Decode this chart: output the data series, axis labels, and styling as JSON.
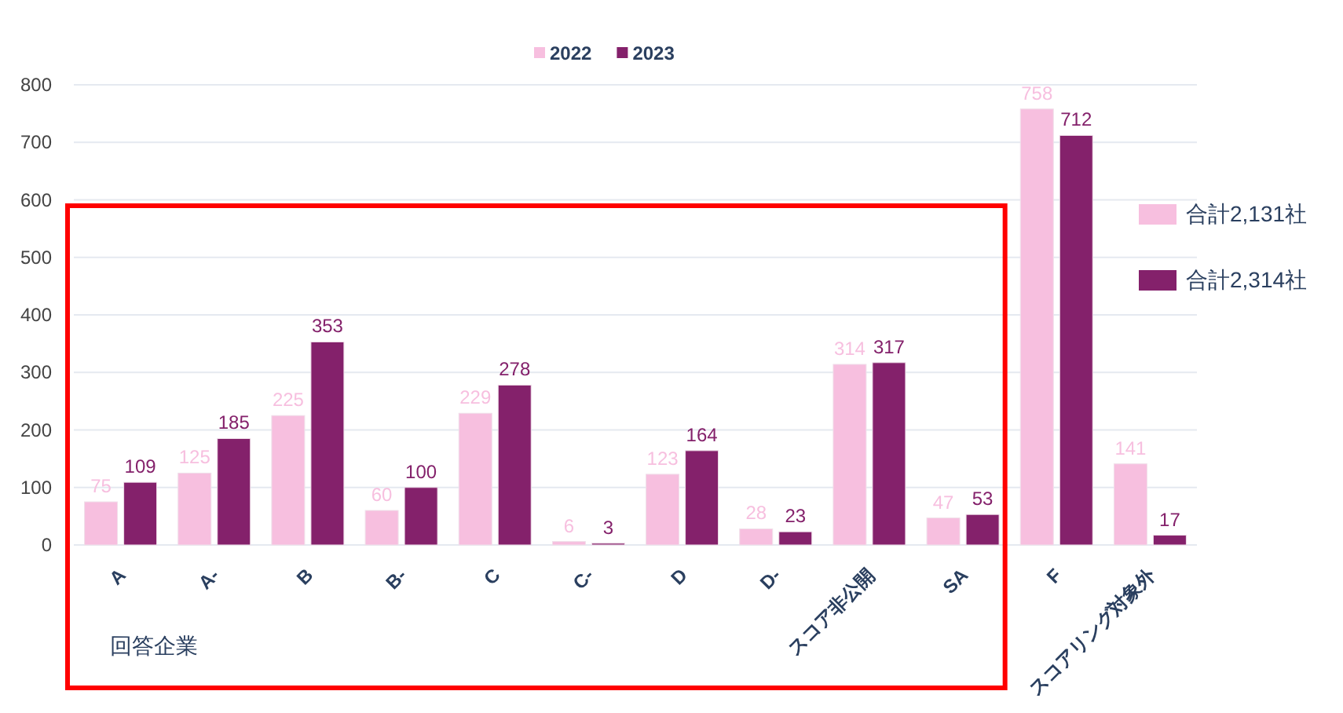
{
  "chart_data": {
    "type": "bar",
    "categories": [
      "A",
      "A-",
      "B",
      "B-",
      "C",
      "C-",
      "D",
      "D-",
      "スコア非公開",
      "SA",
      "F",
      "スコアリング対象外"
    ],
    "series": [
      {
        "name": "2022",
        "color": "#f7bfdf",
        "values": [
          75,
          125,
          225,
          60,
          229,
          6,
          123,
          28,
          314,
          47,
          758,
          141
        ]
      },
      {
        "name": "2023",
        "color": "#84216b",
        "values": [
          109,
          185,
          353,
          100,
          278,
          3,
          164,
          23,
          317,
          53,
          712,
          17
        ]
      }
    ],
    "ylim": [
      0,
      800
    ],
    "yticks": [
      0,
      100,
      200,
      300,
      400,
      500,
      600,
      700,
      800
    ],
    "grid": "y",
    "legend": "top",
    "data_labels": true,
    "annotations": [
      "合計2,131社",
      "合計2,314社",
      "回答企業"
    ]
  }
}
